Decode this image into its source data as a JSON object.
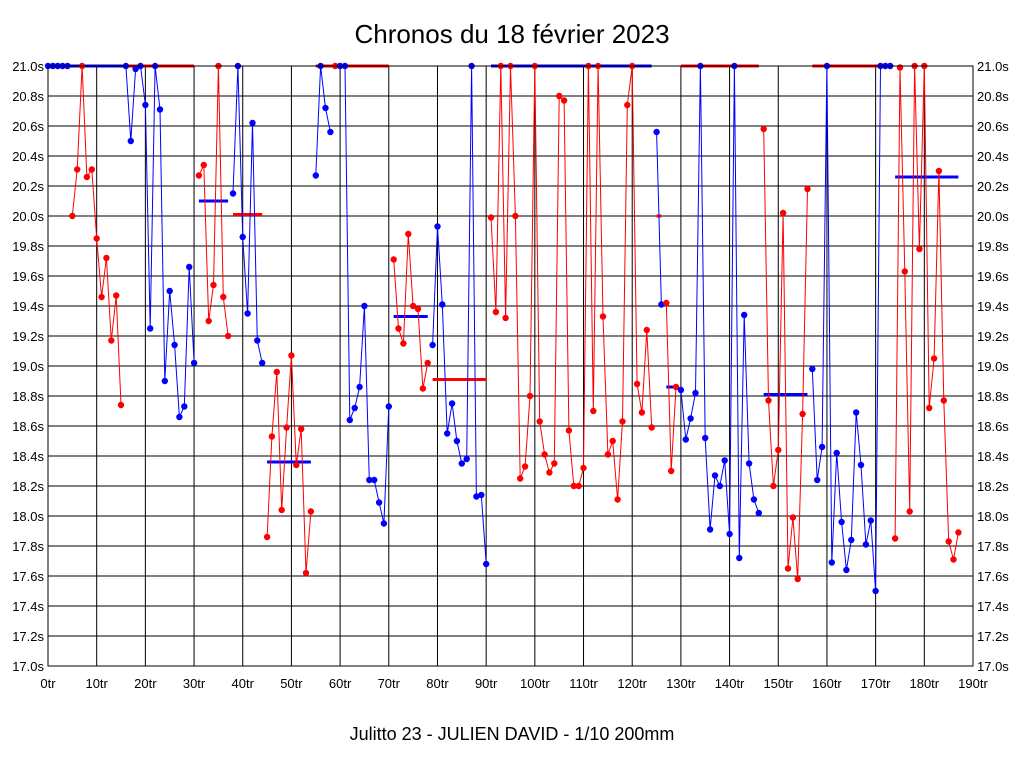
{
  "chart_data": {
    "type": "line",
    "title": "Chronos du 18 février 2023",
    "footer": "Julitto 23 - JULIEN DAVID - 1/10 200mm",
    "xlabel": "",
    "ylabel": "",
    "xlim": [
      0,
      190
    ],
    "ylim": [
      17.0,
      21.0
    ],
    "grid": true,
    "x_ticks": [
      "0tr",
      "10tr",
      "20tr",
      "30tr",
      "40tr",
      "50tr",
      "60tr",
      "70tr",
      "80tr",
      "90tr",
      "100tr",
      "110tr",
      "120tr",
      "130tr",
      "140tr",
      "150tr",
      "160tr",
      "170tr",
      "180tr",
      "190tr"
    ],
    "y_ticks": [
      "17.0s",
      "17.2s",
      "17.4s",
      "17.6s",
      "17.8s",
      "18.0s",
      "18.2s",
      "18.4s",
      "18.6s",
      "18.8s",
      "19.0s",
      "19.2s",
      "19.4s",
      "19.6s",
      "19.8s",
      "20.0s",
      "20.2s",
      "20.4s",
      "20.6s",
      "20.8s",
      "21.0s"
    ],
    "colors": {
      "blue": "#0000ff",
      "red": "#ff0000",
      "grid": "#000000"
    },
    "series": [
      {
        "color": "#0000ff",
        "points": [
          [
            0,
            21.0
          ],
          [
            1,
            21.0
          ],
          [
            2,
            21.0
          ],
          [
            3,
            21.0
          ],
          [
            4,
            21.0
          ]
        ]
      },
      {
        "color": "#ff0000",
        "points": [
          [
            5,
            20.0
          ],
          [
            6,
            20.31
          ],
          [
            7,
            21.0
          ],
          [
            8,
            20.26
          ],
          [
            9,
            20.31
          ],
          [
            10,
            19.85
          ],
          [
            11,
            19.46
          ],
          [
            12,
            19.72
          ],
          [
            13,
            19.17
          ],
          [
            14,
            19.47
          ],
          [
            15,
            18.74
          ]
        ]
      },
      {
        "color": "#0000ff",
        "points": [
          [
            16,
            21.0
          ],
          [
            17,
            20.5
          ],
          [
            18,
            20.98
          ],
          [
            19,
            21.0
          ],
          [
            20,
            20.74
          ],
          [
            21,
            19.25
          ],
          [
            22,
            21.0
          ],
          [
            23,
            20.71
          ],
          [
            24,
            18.9
          ],
          [
            25,
            19.5
          ],
          [
            26,
            19.14
          ],
          [
            27,
            18.66
          ],
          [
            28,
            18.73
          ],
          [
            29,
            19.66
          ],
          [
            30,
            19.02
          ]
        ]
      },
      {
        "color": "#ff0000",
        "points": [
          [
            31,
            20.27
          ],
          [
            32,
            20.34
          ],
          [
            33,
            19.3
          ],
          [
            34,
            19.54
          ],
          [
            35,
            21.0
          ],
          [
            36,
            19.46
          ],
          [
            37,
            19.2
          ]
        ]
      },
      {
        "color": "#0000ff",
        "points": [
          [
            38,
            20.15
          ],
          [
            39,
            21.0
          ],
          [
            40,
            19.86
          ],
          [
            41,
            19.35
          ],
          [
            42,
            20.62
          ],
          [
            43,
            19.17
          ],
          [
            44,
            19.02
          ]
        ]
      },
      {
        "color": "#ff0000",
        "points": [
          [
            45,
            17.86
          ],
          [
            46,
            18.53
          ],
          [
            47,
            18.96
          ],
          [
            48,
            18.04
          ],
          [
            49,
            18.59
          ],
          [
            50,
            19.07
          ],
          [
            51,
            18.34
          ],
          [
            52,
            18.58
          ],
          [
            53,
            17.62
          ],
          [
            54,
            18.03
          ]
        ]
      },
      {
        "color": "#0000ff",
        "points": [
          [
            55,
            20.27
          ],
          [
            56,
            21.0
          ],
          [
            57,
            20.72
          ],
          [
            58,
            20.56
          ]
        ]
      },
      {
        "color": "#ff0000",
        "points": [
          [
            59,
            21.0
          ]
        ]
      },
      {
        "color": "#0000ff",
        "points": [
          [
            60,
            21.0
          ],
          [
            61,
            21.0
          ],
          [
            62,
            18.64
          ],
          [
            63,
            18.72
          ],
          [
            64,
            18.86
          ],
          [
            65,
            19.4
          ],
          [
            66,
            18.24
          ],
          [
            67,
            18.24
          ],
          [
            68,
            18.09
          ],
          [
            69,
            17.95
          ],
          [
            70,
            18.73
          ]
        ]
      },
      {
        "color": "#ff0000",
        "points": [
          [
            71,
            19.71
          ],
          [
            72,
            19.25
          ],
          [
            73,
            19.15
          ],
          [
            74,
            19.88
          ],
          [
            75,
            19.4
          ],
          [
            76,
            19.38
          ],
          [
            77,
            18.85
          ],
          [
            78,
            19.02
          ]
        ]
      },
      {
        "color": "#0000ff",
        "points": [
          [
            79,
            19.14
          ],
          [
            80,
            19.93
          ],
          [
            81,
            19.41
          ],
          [
            82,
            18.55
          ],
          [
            83,
            18.75
          ],
          [
            84,
            18.5
          ],
          [
            85,
            18.35
          ],
          [
            86,
            18.38
          ],
          [
            87,
            21.0
          ],
          [
            88,
            18.13
          ],
          [
            89,
            18.14
          ],
          [
            90,
            17.68
          ]
        ]
      },
      {
        "color": "#ff0000",
        "points": [
          [
            91,
            19.99
          ],
          [
            92,
            19.36
          ],
          [
            93,
            21.0
          ],
          [
            94,
            19.32
          ],
          [
            95,
            21.0
          ],
          [
            96,
            20.0
          ],
          [
            97,
            18.25
          ],
          [
            98,
            18.33
          ],
          [
            99,
            18.8
          ],
          [
            100,
            21.0
          ],
          [
            101,
            18.63
          ],
          [
            102,
            18.41
          ],
          [
            103,
            18.29
          ],
          [
            104,
            18.35
          ],
          [
            105,
            20.8
          ],
          [
            106,
            20.77
          ],
          [
            107,
            18.57
          ],
          [
            108,
            18.2
          ],
          [
            109,
            18.2
          ],
          [
            110,
            18.32
          ],
          [
            111,
            21.0
          ],
          [
            112,
            18.7
          ],
          [
            113,
            21.0
          ],
          [
            114,
            19.33
          ],
          [
            115,
            18.41
          ],
          [
            116,
            18.5
          ],
          [
            117,
            18.11
          ],
          [
            118,
            18.63
          ],
          [
            119,
            20.74
          ],
          [
            120,
            21.0
          ],
          [
            121,
            18.88
          ],
          [
            122,
            18.69
          ],
          [
            123,
            19.24
          ],
          [
            124,
            18.59
          ]
        ]
      },
      {
        "color": "#0000ff",
        "points": [
          [
            125,
            20.56
          ],
          [
            126,
            19.41
          ]
        ]
      },
      {
        "color": "#ff0000",
        "points": [
          [
            127,
            19.42
          ],
          [
            128,
            18.3
          ],
          [
            129,
            18.86
          ]
        ]
      },
      {
        "color": "#0000ff",
        "points": [
          [
            130,
            18.84
          ],
          [
            131,
            18.51
          ],
          [
            132,
            18.65
          ],
          [
            133,
            18.82
          ],
          [
            134,
            21.0
          ],
          [
            135,
            18.52
          ],
          [
            136,
            17.91
          ],
          [
            137,
            18.27
          ],
          [
            138,
            18.2
          ],
          [
            139,
            18.37
          ],
          [
            140,
            17.88
          ],
          [
            141,
            21.0
          ],
          [
            142,
            17.72
          ],
          [
            143,
            19.34
          ],
          [
            144,
            18.35
          ],
          [
            145,
            18.11
          ],
          [
            146,
            18.02
          ]
        ]
      },
      {
        "color": "#ff0000",
        "points": [
          [
            147,
            20.58
          ],
          [
            148,
            18.77
          ],
          [
            149,
            18.2
          ],
          [
            150,
            18.44
          ],
          [
            151,
            20.02
          ],
          [
            152,
            17.65
          ],
          [
            153,
            17.99
          ],
          [
            154,
            17.58
          ],
          [
            155,
            18.68
          ],
          [
            156,
            20.18
          ]
        ]
      },
      {
        "color": "#0000ff",
        "points": [
          [
            157,
            18.98
          ],
          [
            158,
            18.24
          ],
          [
            159,
            18.46
          ],
          [
            160,
            21.0
          ],
          [
            161,
            17.69
          ],
          [
            162,
            18.42
          ],
          [
            163,
            17.96
          ],
          [
            164,
            17.64
          ],
          [
            165,
            17.84
          ],
          [
            166,
            18.69
          ],
          [
            167,
            18.34
          ],
          [
            168,
            17.81
          ],
          [
            169,
            17.97
          ],
          [
            170,
            17.5
          ],
          [
            171,
            21.0
          ],
          [
            172,
            21.0
          ],
          [
            173,
            21.0
          ]
        ]
      },
      {
        "color": "#ff0000",
        "points": [
          [
            174,
            17.85
          ],
          [
            175,
            20.99
          ],
          [
            176,
            19.63
          ],
          [
            177,
            18.03
          ],
          [
            178,
            21.0
          ],
          [
            179,
            19.78
          ],
          [
            180,
            21.0
          ],
          [
            181,
            18.72
          ],
          [
            182,
            19.05
          ],
          [
            183,
            20.3
          ],
          [
            184,
            18.77
          ],
          [
            185,
            17.83
          ],
          [
            186,
            17.71
          ],
          [
            187,
            17.89
          ]
        ]
      }
    ],
    "reference_lines": [
      {
        "color": "#0000ff",
        "x0": 0,
        "x1": 16,
        "y": 21.0
      },
      {
        "color": "#ff0000",
        "x0": 16,
        "x1": 30,
        "y": 21.0
      },
      {
        "color": "#0000ff",
        "x0": 31,
        "x1": 37,
        "y": 20.1
      },
      {
        "color": "#ff0000",
        "x0": 38,
        "x1": 44,
        "y": 20.01
      },
      {
        "color": "#0000ff",
        "x0": 45,
        "x1": 54,
        "y": 18.36
      },
      {
        "color": "#ff0000",
        "x0": 55,
        "x1": 70,
        "y": 21.0
      },
      {
        "color": "#0000ff",
        "x0": 71,
        "x1": 78,
        "y": 19.33
      },
      {
        "color": "#ff0000",
        "x0": 79,
        "x1": 90,
        "y": 18.91
      },
      {
        "color": "#0000ff",
        "x0": 91,
        "x1": 124,
        "y": 21.0
      },
      {
        "color": "#ff0000",
        "x0": 125,
        "x1": 126,
        "y": 20.0
      },
      {
        "color": "#0000ff",
        "x0": 127,
        "x1": 129,
        "y": 18.86
      },
      {
        "color": "#ff0000",
        "x0": 130,
        "x1": 146,
        "y": 21.0
      },
      {
        "color": "#0000ff",
        "x0": 147,
        "x1": 156,
        "y": 18.81
      },
      {
        "color": "#ff0000",
        "x0": 157,
        "x1": 173,
        "y": 21.0
      },
      {
        "color": "#0000ff",
        "x0": 174,
        "x1": 187,
        "y": 20.26
      }
    ]
  }
}
